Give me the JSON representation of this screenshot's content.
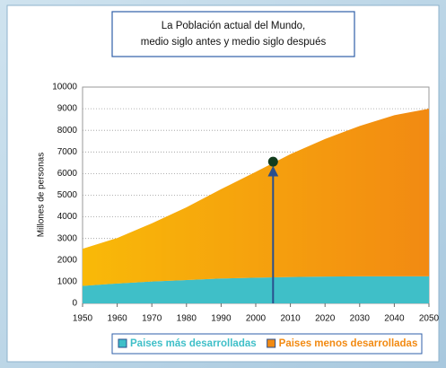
{
  "chart_data": {
    "type": "stacked_area",
    "title": [
      "La Población actual del Mundo,",
      "medio siglo antes y medio siglo después"
    ],
    "y_label": "Millones de personas",
    "x": [
      1950,
      1960,
      1970,
      1980,
      1990,
      2000,
      2010,
      2020,
      2030,
      2040,
      2050
    ],
    "series": [
      {
        "name": "Paises más desarrolladas",
        "color": "#3fbfc8",
        "values": [
          810,
          920,
          1010,
          1080,
          1150,
          1190,
          1220,
          1240,
          1250,
          1250,
          1250
        ]
      },
      {
        "name": "Paises menos desarrolladas",
        "color": "#f28a12",
        "values": [
          1710,
          2100,
          2690,
          3360,
          4130,
          4890,
          5680,
          6360,
          6950,
          7450,
          7750
        ]
      }
    ],
    "marker": {
      "x": 2005,
      "y": 6550
    },
    "xlim": [
      1950,
      2050
    ],
    "xticks": [
      1950,
      1960,
      1970,
      1980,
      1990,
      2000,
      2010,
      2020,
      2030,
      2040,
      2050
    ],
    "ylim": [
      0,
      10000
    ],
    "yticks": [
      0,
      1000,
      2000,
      3000,
      4000,
      5000,
      6000,
      7000,
      8000,
      9000,
      10000
    ],
    "grid": true,
    "legend": "bottom"
  }
}
